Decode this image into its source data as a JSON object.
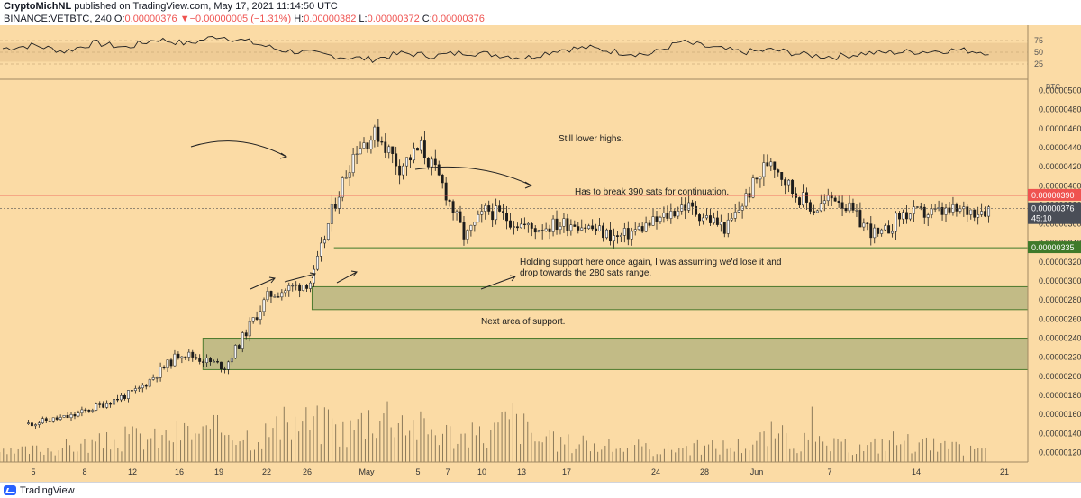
{
  "header": {
    "publisher": "CryptoMichNL",
    "published_text": "published on TradingView.com, May 17, 2021 11:14:50 UTC",
    "symbol": "BINANCE:VETBTC, 240",
    "open_label": "O:",
    "open_value": "0.00000376",
    "change_arrow": "▼",
    "change": "−0.00000005 (−1.31%)",
    "high_label": "H:",
    "high_value": "0.00000382",
    "low_label": "L:",
    "low_value": "0.00000372",
    "close_label": "C:",
    "close_value": "0.00000376"
  },
  "footer": {
    "brand": "TradingView"
  },
  "colors": {
    "background": "#fbdba5",
    "candle": "#1c1c1c",
    "resistance_line": "#ef5350",
    "support_line": "#3f7a2a",
    "zone_fill": "#c2bb86",
    "zone_border": "#4d7a2e",
    "rsi_band": "#efcc96"
  },
  "chart_data": {
    "type": "candlestick",
    "currency": "BTC",
    "ylim": [
      1.1e-06,
      5.1e-06
    ],
    "y_ticks": [
      "0.00000500",
      "0.00000480",
      "0.00000460",
      "0.00000440",
      "0.00000420",
      "0.00000400",
      "0.00000380",
      "0.00000360",
      "0.00000340",
      "0.00000320",
      "0.00000300",
      "0.00000280",
      "0.00000260",
      "0.00000240",
      "0.00000220",
      "0.00000200",
      "0.00000180",
      "0.00000160",
      "0.00000140",
      "0.00000120"
    ],
    "x_ticks": [
      "5",
      "8",
      "12",
      "16",
      "19",
      "22",
      "26",
      "May",
      "5",
      "7",
      "10",
      "13",
      "17",
      "24",
      "28",
      "Jun",
      "7",
      "14",
      "21"
    ],
    "price_series": {
      "approx_close_path": [
        {
          "date": "Apr 3",
          "close": 1.5e-06
        },
        {
          "date": "Apr 5",
          "close": 1.58e-06
        },
        {
          "date": "Apr 8",
          "close": 1.85e-06
        },
        {
          "date": "Apr 10",
          "close": 2.25e-06
        },
        {
          "date": "Apr 12",
          "close": 2.1e-06
        },
        {
          "date": "Apr 14",
          "close": 2.85e-06
        },
        {
          "date": "Apr 16",
          "close": 3e-06
        },
        {
          "date": "Apr 17",
          "close": 3.8e-06
        },
        {
          "date": "Apr 18",
          "close": 4.4e-06
        },
        {
          "date": "Apr 19",
          "close": 4.55e-06
        },
        {
          "date": "Apr 20",
          "close": 4.2e-06
        },
        {
          "date": "Apr 21",
          "close": 4.4e-06
        },
        {
          "date": "Apr 22",
          "close": 4e-06
        },
        {
          "date": "Apr 23",
          "close": 3.45e-06
        },
        {
          "date": "Apr 24",
          "close": 3.75e-06
        },
        {
          "date": "Apr 26",
          "close": 3.55e-06
        },
        {
          "date": "Apr 28",
          "close": 3.62e-06
        },
        {
          "date": "Apr 30",
          "close": 3.45e-06
        },
        {
          "date": "May 2",
          "close": 3.65e-06
        },
        {
          "date": "May 3",
          "close": 3.8e-06
        },
        {
          "date": "May 5",
          "close": 3.55e-06
        },
        {
          "date": "May 7",
          "close": 4.3e-06
        },
        {
          "date": "May 8",
          "close": 3.95e-06
        },
        {
          "date": "May 9",
          "close": 3.75e-06
        },
        {
          "date": "May 10",
          "close": 3.9e-06
        },
        {
          "date": "May 11",
          "close": 3.65e-06
        },
        {
          "date": "May 12",
          "close": 3.45e-06
        },
        {
          "date": "May 13",
          "close": 3.7e-06
        },
        {
          "date": "May 15",
          "close": 3.72e-06
        },
        {
          "date": "May 17",
          "close": 3.76e-06
        }
      ]
    },
    "horizontal_lines": [
      {
        "value": 3.9e-06,
        "label": "0.00000390",
        "color": "#ef5350"
      },
      {
        "value": 3.35e-06,
        "label": "0.00000335",
        "color": "#3f7a2a"
      }
    ],
    "last_price": {
      "value": 3.76e-06,
      "label": "0.00000376",
      "countdown": "45:10"
    },
    "zones": [
      {
        "from_date": "Apr 16",
        "to_date": "May 27",
        "low": 2.7e-06,
        "high": 2.94e-06
      },
      {
        "from_date": "Apr 11",
        "to_date": "Jun 24",
        "low": 2.07e-06,
        "high": 2.4e-06
      }
    ],
    "annotations": [
      {
        "text": "Still lower highs."
      },
      {
        "text": "Has to break 390 sats for continuation."
      },
      {
        "text": "Holding support here once again, I was assuming we'd lose it and"
      },
      {
        "text": "drop towards the 280 sats range."
      },
      {
        "text": "Next area of support."
      }
    ],
    "rsi": {
      "levels": [
        75,
        50,
        25
      ],
      "band": [
        30,
        70
      ],
      "approx_values": [
        58,
        65,
        52,
        70,
        60,
        78,
        68,
        85,
        72,
        55,
        48,
        40,
        35,
        48,
        42,
        50,
        45,
        38,
        55,
        60,
        50,
        45,
        72,
        60,
        50,
        55,
        45,
        40,
        48,
        50,
        52,
        55,
        50
      ]
    },
    "volume": {
      "approx_relative": [
        0.15,
        0.2,
        0.25,
        0.3,
        0.35,
        0.4,
        0.5,
        0.45,
        0.6,
        0.55,
        0.7,
        0.5,
        0.65,
        0.8,
        0.75,
        0.6,
        0.95,
        1.0,
        0.7,
        0.6,
        0.5,
        0.55,
        0.9,
        0.45,
        0.4,
        0.35,
        0.3,
        0.3,
        0.25,
        0.3,
        0.28,
        0.32,
        0.35,
        0.55,
        0.4,
        0.35,
        0.3,
        0.28,
        0.45,
        0.38,
        0.3,
        0.25,
        0.22
      ]
    }
  }
}
